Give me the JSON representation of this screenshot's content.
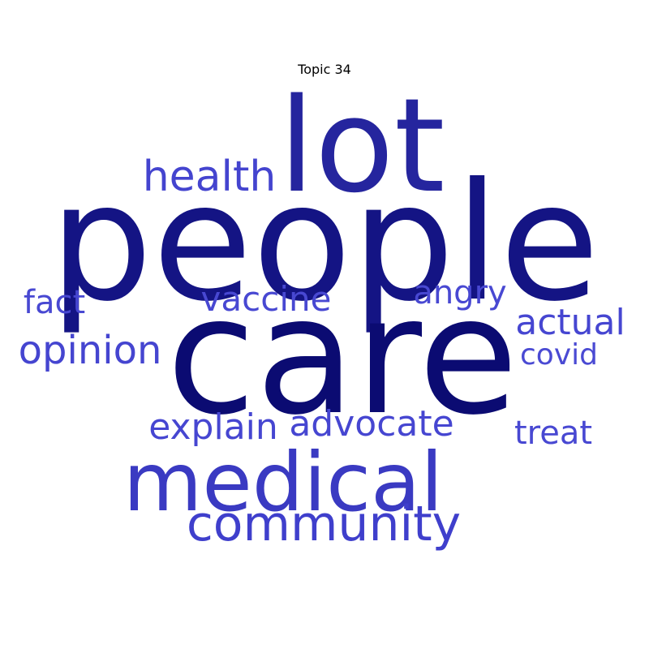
{
  "title": "Topic 34",
  "words": [
    {
      "text": "people",
      "weight": 1.0,
      "color": "#141484"
    },
    {
      "text": "care",
      "weight": 0.98,
      "color": "#0b0b72"
    },
    {
      "text": "lot",
      "weight": 0.82,
      "color": "#25259e"
    },
    {
      "text": "medical",
      "weight": 0.62,
      "color": "#3a3ac2"
    },
    {
      "text": "community",
      "weight": 0.36,
      "color": "#3f3fcc"
    },
    {
      "text": "health",
      "weight": 0.32,
      "color": "#4444cf"
    },
    {
      "text": "opinion",
      "weight": 0.28,
      "color": "#4545d0"
    },
    {
      "text": "explain",
      "weight": 0.26,
      "color": "#4646d1"
    },
    {
      "text": "advocate",
      "weight": 0.26,
      "color": "#4646d1"
    },
    {
      "text": "actual",
      "weight": 0.26,
      "color": "#4646d1"
    },
    {
      "text": "vaccine",
      "weight": 0.24,
      "color": "#4848d2"
    },
    {
      "text": "treat",
      "weight": 0.24,
      "color": "#4848d2"
    },
    {
      "text": "angry",
      "weight": 0.23,
      "color": "#4848d2"
    },
    {
      "text": "fact",
      "weight": 0.23,
      "color": "#4848d2"
    },
    {
      "text": "covid",
      "weight": 0.2,
      "color": "#4a4ad3"
    }
  ]
}
